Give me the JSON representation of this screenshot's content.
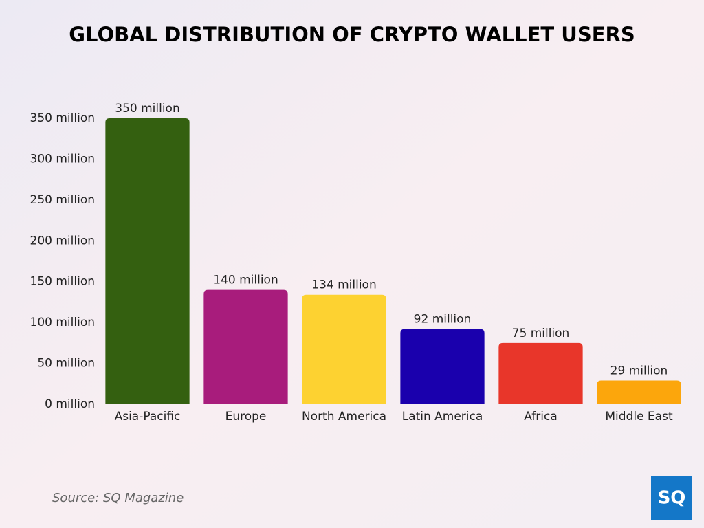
{
  "chart_data": {
    "type": "bar",
    "title": "GLOBAL DISTRIBUTION OF CRYPTO WALLET USERS",
    "categories": [
      "Asia-Pacific",
      "Europe",
      "North America",
      "Latin America",
      "Africa",
      "Middle East"
    ],
    "values": [
      350,
      140,
      134,
      92,
      75,
      29
    ],
    "value_labels": [
      "350 million",
      "140 million",
      "134 million",
      "92 million",
      "75 million",
      "29 million"
    ],
    "colors": [
      "#346010",
      "#a81c7c",
      "#fdd231",
      "#1a00ad",
      "#e8362a",
      "#fca60c"
    ],
    "ylim": [
      0,
      350
    ],
    "yticks": [
      {
        "value": 0,
        "label": "0 million"
      },
      {
        "value": 50,
        "label": "50 million"
      },
      {
        "value": 100,
        "label": "100 million"
      },
      {
        "value": 150,
        "label": "150 million"
      },
      {
        "value": 200,
        "label": "200 million"
      },
      {
        "value": 250,
        "label": "250 million"
      },
      {
        "value": 300,
        "label": "300 million"
      },
      {
        "value": 350,
        "label": "350 million"
      }
    ],
    "grid": false,
    "source": "Source: SQ Magazine",
    "logo": "SQ"
  }
}
